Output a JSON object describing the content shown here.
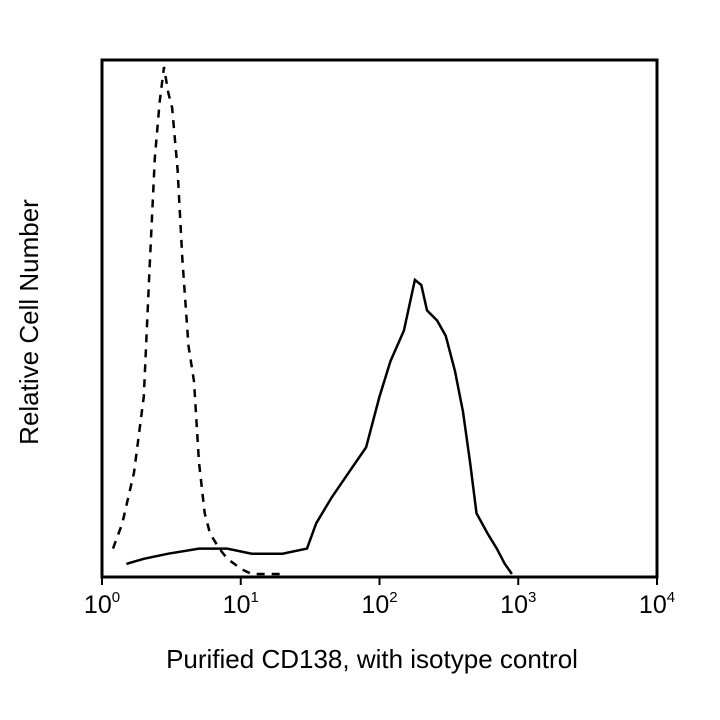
{
  "chart_data": {
    "type": "line",
    "title": "",
    "xlabel": "Purified CD138, with isotype control",
    "ylabel": "Relative Cell Number",
    "x_scale": "log",
    "xlim": [
      1,
      10000
    ],
    "ylim": [
      0,
      100
    ],
    "grid": false,
    "legend": "none",
    "x_ticks": [
      {
        "value": 1,
        "base": "10",
        "exp": "0"
      },
      {
        "value": 10,
        "base": "10",
        "exp": "1"
      },
      {
        "value": 100,
        "base": "10",
        "exp": "2"
      },
      {
        "value": 1000,
        "base": "10",
        "exp": "3"
      },
      {
        "value": 10000,
        "base": "10",
        "exp": "4"
      }
    ],
    "series": [
      {
        "style": "dashed",
        "color": "#000000",
        "x": [
          1.2,
          1.4,
          1.7,
          2.0,
          2.2,
          2.4,
          2.6,
          2.8,
          3.0,
          3.2,
          3.5,
          3.8,
          4.2,
          4.6,
          5.0,
          5.5,
          6.0,
          7.0,
          8.0,
          9.0,
          10.0,
          12.0,
          20.0
        ],
        "y": [
          5,
          10,
          20,
          35,
          60,
          82,
          93,
          100,
          95,
          92,
          80,
          62,
          45,
          38,
          22,
          12,
          8,
          5,
          3,
          2,
          1,
          0,
          0
        ]
      },
      {
        "style": "solid",
        "color": "#000000",
        "x": [
          1.5,
          2.0,
          3.0,
          5.0,
          8.0,
          12.0,
          20.0,
          30.0,
          35.0,
          45.0,
          60.0,
          80.0,
          100.0,
          120.0,
          150.0,
          180.0,
          200.0,
          220.0,
          260.0,
          300.0,
          350.0,
          400.0,
          450.0,
          500.0,
          600.0,
          700.0,
          800.0,
          900.0
        ],
        "y": [
          2,
          3,
          4,
          5,
          5,
          4,
          4,
          5,
          10,
          15,
          20,
          25,
          35,
          42,
          48,
          58,
          57,
          52,
          50,
          47,
          40,
          32,
          22,
          12,
          8,
          5,
          2,
          0
        ]
      }
    ]
  }
}
